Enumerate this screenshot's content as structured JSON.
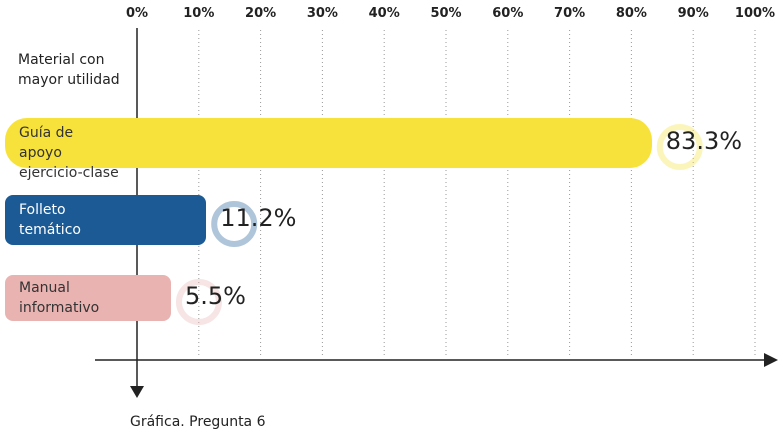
{
  "chart_data": {
    "type": "bar",
    "orientation": "horizontal",
    "title": "Material con mayor utilidad",
    "caption": "Gráfica. Pregunta 6",
    "categories": [
      "Guía de apoyo ejercicio-clase",
      "Folleto temático",
      "Manual informativo"
    ],
    "values": [
      83.3,
      11.2,
      5.5
    ],
    "value_labels": [
      "83.3%",
      "11.2%",
      "5.5%"
    ],
    "colors": [
      "#f7e23c",
      "#1b5a95",
      "#e9b3b1"
    ],
    "label_colors": [
      "#333333",
      "#ffffff",
      "#333333"
    ],
    "xlim": [
      0,
      100
    ],
    "xticks": [
      {
        "value": 0,
        "label": "0%"
      },
      {
        "value": 10,
        "label": "10%"
      },
      {
        "value": 20,
        "label": "20%"
      },
      {
        "value": 30,
        "label": "30%"
      },
      {
        "value": 40,
        "label": "40%"
      },
      {
        "value": 50,
        "label": "50%"
      },
      {
        "value": 60,
        "label": "60%"
      },
      {
        "value": 70,
        "label": "70%"
      },
      {
        "value": 80,
        "label": "80%"
      },
      {
        "value": 90,
        "label": "90%"
      },
      {
        "value": 100,
        "label": "100%"
      }
    ],
    "grid": true
  }
}
